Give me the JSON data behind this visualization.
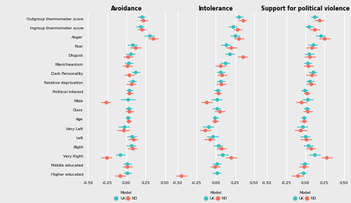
{
  "title_avoidance": "Avoidance",
  "title_intolerance": "Intolerance",
  "title_violence": "Support for political violence",
  "categories": [
    "Outgroup thermometer score",
    "Ingroup thermometer score",
    "Anger",
    "Fear",
    "Disgust",
    "Manicheanism",
    "Dark Personality",
    "Relative deprivation",
    "Political interest",
    "Male",
    "Class",
    "Age",
    "Very Left",
    "Left",
    "Right",
    "Very Right",
    "Middle educated",
    "Higher educated"
  ],
  "color_uk": "#3dbfbf",
  "color_no": "#f07060",
  "avoidance": {
    "uk": [
      0.2,
      0.18,
      0.3,
      0.08,
      0.05,
      0.03,
      0.12,
      0.08,
      0.04,
      0.02,
      0.03,
      0.02,
      -0.03,
      0.07,
      0.06,
      -0.08,
      0.01,
      0.01
    ],
    "uk_lo": [
      0.15,
      0.13,
      0.24,
      0.02,
      -0.01,
      -0.02,
      0.07,
      0.03,
      0.0,
      -0.07,
      -0.01,
      -0.01,
      -0.1,
      0.01,
      0.0,
      -0.14,
      -0.04,
      -0.04
    ],
    "uk_hi": [
      0.25,
      0.23,
      0.36,
      0.14,
      0.11,
      0.08,
      0.17,
      0.13,
      0.08,
      0.11,
      0.07,
      0.05,
      0.04,
      0.13,
      0.12,
      -0.02,
      0.06,
      0.06
    ],
    "no": [
      0.22,
      0.2,
      0.35,
      0.12,
      0.02,
      0.01,
      0.04,
      0.06,
      0.04,
      -0.27,
      0.04,
      0.03,
      -0.04,
      0.09,
      0.08,
      -0.26,
      0.01,
      -0.08
    ],
    "no_lo": [
      0.17,
      0.15,
      0.29,
      0.05,
      -0.04,
      -0.05,
      -0.02,
      0.0,
      0.0,
      -0.33,
      -0.01,
      0.0,
      -0.12,
      0.03,
      0.02,
      -0.33,
      -0.05,
      -0.15
    ],
    "no_hi": [
      0.27,
      0.25,
      0.41,
      0.19,
      0.08,
      0.07,
      0.1,
      0.12,
      0.08,
      -0.21,
      0.09,
      0.06,
      0.04,
      0.15,
      0.14,
      -0.19,
      0.07,
      -0.01
    ]
  },
  "intolerance": {
    "uk": [
      0.3,
      0.22,
      0.25,
      0.13,
      0.18,
      0.12,
      0.06,
      0.06,
      0.02,
      0.01,
      0.01,
      -0.01,
      -0.1,
      -0.04,
      0.03,
      0.09,
      0.01,
      0.01
    ],
    "uk_lo": [
      0.25,
      0.17,
      0.19,
      0.07,
      0.12,
      0.06,
      0.01,
      0.01,
      -0.02,
      -0.06,
      -0.04,
      -0.04,
      -0.17,
      -0.11,
      -0.03,
      0.02,
      -0.04,
      -0.04
    ],
    "uk_hi": [
      0.35,
      0.27,
      0.31,
      0.19,
      0.24,
      0.18,
      0.11,
      0.11,
      0.06,
      0.08,
      0.06,
      0.03,
      -0.03,
      0.03,
      0.09,
      0.16,
      0.06,
      0.06
    ],
    "no": [
      0.35,
      0.28,
      0.3,
      0.2,
      0.35,
      0.06,
      0.08,
      0.07,
      0.03,
      -0.12,
      0.05,
      -0.01,
      -0.14,
      -0.08,
      0.07,
      0.2,
      -0.01,
      -0.45
    ],
    "no_lo": [
      0.3,
      0.23,
      0.24,
      0.13,
      0.29,
      0.0,
      0.02,
      0.01,
      -0.01,
      -0.19,
      -0.01,
      -0.05,
      -0.21,
      -0.15,
      0.01,
      0.13,
      -0.07,
      -0.52
    ],
    "no_hi": [
      0.4,
      0.33,
      0.36,
      0.27,
      0.41,
      0.12,
      0.14,
      0.13,
      0.07,
      -0.05,
      0.11,
      0.03,
      -0.07,
      -0.01,
      0.13,
      0.27,
      0.05,
      -0.38
    ]
  },
  "violence": {
    "uk": [
      0.12,
      0.05,
      0.2,
      0.1,
      0.05,
      0.03,
      0.1,
      0.06,
      -0.01,
      0.03,
      0.02,
      -0.02,
      -0.04,
      0.0,
      0.04,
      0.12,
      -0.01,
      -0.03
    ],
    "uk_lo": [
      0.07,
      0.0,
      0.14,
      0.04,
      -0.01,
      -0.02,
      0.05,
      0.01,
      -0.05,
      -0.04,
      -0.02,
      -0.05,
      -0.11,
      -0.06,
      -0.02,
      0.05,
      -0.06,
      -0.08
    ],
    "uk_hi": [
      0.17,
      0.1,
      0.26,
      0.16,
      0.11,
      0.08,
      0.15,
      0.11,
      0.03,
      0.1,
      0.06,
      0.01,
      0.03,
      0.06,
      0.1,
      0.19,
      0.04,
      0.02
    ],
    "no": [
      0.18,
      0.12,
      0.25,
      0.08,
      0.06,
      0.04,
      0.08,
      0.07,
      0.02,
      -0.05,
      0.03,
      -0.02,
      -0.06,
      0.01,
      0.07,
      0.28,
      -0.02,
      -0.1
    ],
    "no_lo": [
      0.12,
      0.06,
      0.18,
      0.01,
      -0.01,
      -0.02,
      0.01,
      0.01,
      -0.02,
      -0.12,
      -0.03,
      -0.06,
      -0.14,
      -0.06,
      0.01,
      0.21,
      -0.08,
      -0.17
    ],
    "no_hi": [
      0.24,
      0.18,
      0.32,
      0.15,
      0.13,
      0.1,
      0.15,
      0.13,
      0.06,
      0.02,
      0.09,
      0.02,
      0.02,
      0.08,
      0.13,
      0.35,
      0.04,
      -0.03
    ]
  },
  "xlim": [
    -0.55,
    0.55
  ],
  "xticks": [
    -0.5,
    -0.25,
    0.0,
    0.25,
    0.5
  ],
  "xtick_labels": [
    "-0.50",
    "-0.25",
    "0.00",
    "0.25",
    "0.50"
  ],
  "bg_color": "#ebebeb",
  "grid_color": "#ffffff"
}
